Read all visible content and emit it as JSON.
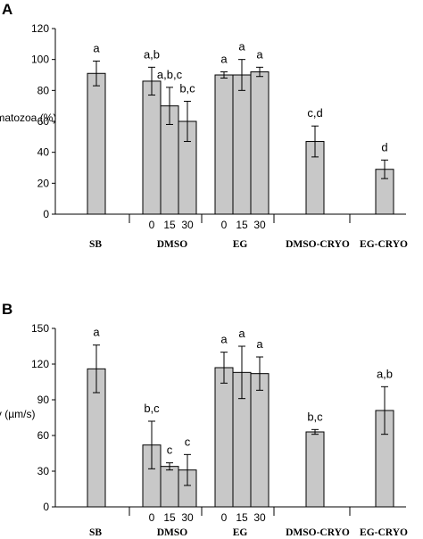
{
  "colors": {
    "bar_fill": "#c8c8c8",
    "bar_stroke": "#000000",
    "background": "#ffffff"
  },
  "chart_data": [
    {
      "panel": "A",
      "type": "bar",
      "ylabel": "Motile spermatozoa (%)",
      "ylim": [
        0,
        120
      ],
      "yticks": [
        0,
        20,
        40,
        60,
        80,
        100,
        120
      ],
      "grid": false,
      "groups": [
        "SB",
        "DMSO",
        "EG",
        "DMSO-CRYO",
        "EG-CRYO"
      ],
      "time_labels": [
        "0",
        "15",
        "30"
      ],
      "bars": [
        {
          "group": "SB",
          "time": "",
          "value": 91,
          "error": 8,
          "sig": "a"
        },
        {
          "group": "DMSO",
          "time": "0",
          "value": 86,
          "error": 9,
          "sig": "a,b"
        },
        {
          "group": "DMSO",
          "time": "15",
          "value": 70,
          "error": 12,
          "sig": "a,b,c"
        },
        {
          "group": "DMSO",
          "time": "30",
          "value": 60,
          "error": 13,
          "sig": "b,c"
        },
        {
          "group": "EG",
          "time": "0",
          "value": 90,
          "error": 2,
          "sig": "a"
        },
        {
          "group": "EG",
          "time": "15",
          "value": 90,
          "error": 10,
          "sig": "a"
        },
        {
          "group": "EG",
          "time": "30",
          "value": 92,
          "error": 3,
          "sig": "a"
        },
        {
          "group": "DMSO-CRYO",
          "time": "",
          "value": 47,
          "error": 10,
          "sig": "c,d"
        },
        {
          "group": "EG-CRYO",
          "time": "",
          "value": 29,
          "error": 6,
          "sig": "d"
        }
      ]
    },
    {
      "panel": "B",
      "type": "bar",
      "ylabel": "Velocity (µm/s)",
      "ylim": [
        0,
        150
      ],
      "yticks": [
        0,
        30,
        60,
        90,
        120,
        150
      ],
      "grid": false,
      "groups": [
        "SB",
        "DMSO",
        "EG",
        "DMSO-CRYO",
        "EG-CRYO"
      ],
      "time_labels": [
        "0",
        "15",
        "30"
      ],
      "bars": [
        {
          "group": "SB",
          "time": "",
          "value": 116,
          "error": 20,
          "sig": "a"
        },
        {
          "group": "DMSO",
          "time": "0",
          "value": 52,
          "error": 20,
          "sig": "b,c"
        },
        {
          "group": "DMSO",
          "time": "15",
          "value": 34,
          "error": 3,
          "sig": "c"
        },
        {
          "group": "DMSO",
          "time": "30",
          "value": 31,
          "error": 13,
          "sig": "c"
        },
        {
          "group": "EG",
          "time": "0",
          "value": 117,
          "error": 13,
          "sig": "a"
        },
        {
          "group": "EG",
          "time": "15",
          "value": 113,
          "error": 22,
          "sig": "a"
        },
        {
          "group": "EG",
          "time": "30",
          "value": 112,
          "error": 14,
          "sig": "a"
        },
        {
          "group": "DMSO-CRYO",
          "time": "",
          "value": 63,
          "error": 2,
          "sig": "b,c"
        },
        {
          "group": "EG-CRYO",
          "time": "",
          "value": 81,
          "error": 20,
          "sig": "a,b"
        }
      ]
    }
  ]
}
